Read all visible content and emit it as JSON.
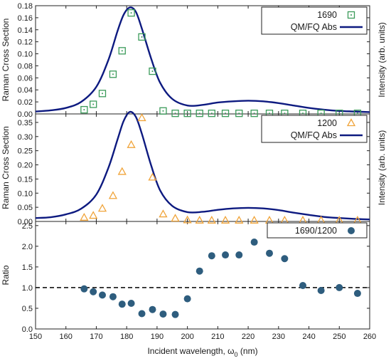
{
  "chart_data": [
    {
      "type": "scatter",
      "panel": "top",
      "ylabel": "Raman Cross Section",
      "ylabel_right": "Intensity (arb. units)",
      "xlim": [
        150,
        260
      ],
      "ylim": [
        0,
        0.18
      ],
      "yticks": [
        "0.00",
        "0.02",
        "0.04",
        "0.06",
        "0.08",
        "0.10",
        "0.12",
        "0.14",
        "0.16",
        "0.18"
      ],
      "legend_position": "top-right",
      "colors": {
        "marker": "#3b9b5a",
        "curve": "#0d1a80"
      },
      "series": [
        {
          "name": "1690",
          "marker": "square",
          "x": [
            166,
            169,
            172,
            175.5,
            178.5,
            181.5,
            185,
            188.5,
            192,
            196,
            200,
            204,
            208,
            212.5,
            217,
            222,
            227,
            232,
            238,
            244,
            250,
            256
          ],
          "y": [
            0.007,
            0.016,
            0.034,
            0.066,
            0.105,
            0.168,
            0.128,
            0.071,
            0.005,
            0.001,
            0.001,
            0.001,
            0.001,
            0.001,
            0.001,
            0.001,
            0.001,
            0.001,
            0.001,
            0.001,
            0.001,
            0.001
          ]
        },
        {
          "name": "QM/FQ Abs",
          "marker": "line",
          "x": [
            150,
            155,
            160,
            165,
            170,
            174,
            177,
            179,
            181,
            183,
            185,
            188,
            191,
            195,
            200,
            205,
            210,
            215,
            220,
            225,
            230,
            235,
            240,
            245,
            250,
            255,
            260
          ],
          "y": [
            0.004,
            0.006,
            0.01,
            0.02,
            0.045,
            0.09,
            0.138,
            0.165,
            0.177,
            0.17,
            0.142,
            0.093,
            0.052,
            0.025,
            0.014,
            0.015,
            0.019,
            0.021,
            0.022,
            0.021,
            0.018,
            0.014,
            0.01,
            0.007,
            0.005,
            0.004,
            0.003
          ]
        }
      ]
    },
    {
      "type": "scatter",
      "panel": "middle",
      "ylabel": "Raman Cross Section",
      "ylabel_right": "Intensity (arb. units)",
      "xlim": [
        150,
        260
      ],
      "ylim": [
        0,
        0.38
      ],
      "yticks": [
        "0.00",
        "0.05",
        "0.10",
        "0.15",
        "0.20",
        "0.25",
        "0.30",
        "0.35"
      ],
      "legend_position": "top-right",
      "colors": {
        "marker": "#f0a43a",
        "curve": "#0d1a80"
      },
      "series": [
        {
          "name": "1200",
          "marker": "triangle",
          "x": [
            166,
            169,
            172,
            175.5,
            178.5,
            181.5,
            185,
            188.5,
            192,
            196,
            200,
            204,
            208,
            212.5,
            217,
            222,
            227,
            232,
            238,
            244,
            250,
            256
          ],
          "y": [
            0.013,
            0.02,
            0.045,
            0.09,
            0.175,
            0.27,
            0.365,
            0.155,
            0.025,
            0.01,
            0.004,
            0.003,
            0.003,
            0.003,
            0.003,
            0.003,
            0.003,
            0.003,
            0.003,
            0.003,
            0.003,
            0.003
          ]
        },
        {
          "name": "QM/FQ Abs",
          "marker": "line",
          "x": [
            150,
            155,
            160,
            165,
            170,
            174,
            177,
            179,
            181,
            183,
            185,
            188,
            191,
            195,
            200,
            205,
            210,
            215,
            220,
            225,
            230,
            235,
            240,
            245,
            250,
            255,
            260
          ],
          "y": [
            0.012,
            0.015,
            0.025,
            0.045,
            0.095,
            0.19,
            0.29,
            0.355,
            0.387,
            0.37,
            0.31,
            0.2,
            0.11,
            0.055,
            0.033,
            0.034,
            0.041,
            0.046,
            0.048,
            0.046,
            0.04,
            0.031,
            0.023,
            0.016,
            0.012,
            0.009,
            0.007
          ]
        }
      ]
    },
    {
      "type": "scatter",
      "panel": "bottom",
      "ylabel": "Ratio",
      "xlabel": "Incident wavelength, ω0 (nm)",
      "xlim": [
        150,
        260
      ],
      "ylim": [
        0,
        2.6
      ],
      "xticks": [
        "150",
        "160",
        "170",
        "180",
        "190",
        "200",
        "210",
        "220",
        "230",
        "240",
        "250",
        "260"
      ],
      "yticks": [
        "0.0",
        "0.5",
        "1.0",
        "1.5",
        "2.0",
        "2.5"
      ],
      "reference_line": 1.0,
      "legend_position": "top-right",
      "colors": {
        "marker": "#2e5d7e",
        "reference": "#000000"
      },
      "series": [
        {
          "name": "1690/1200",
          "marker": "circle",
          "x": [
            166,
            169,
            172,
            175.5,
            178.5,
            181.5,
            185,
            188.5,
            192,
            196,
            200,
            204,
            208,
            212.5,
            217,
            222,
            227,
            232,
            238,
            244,
            250,
            256
          ],
          "y": [
            0.97,
            0.9,
            0.82,
            0.78,
            0.6,
            0.62,
            0.37,
            0.47,
            0.36,
            0.35,
            0.73,
            1.4,
            1.77,
            1.79,
            1.79,
            2.1,
            1.83,
            1.7,
            1.05,
            0.93,
            1.0,
            0.86
          ]
        }
      ]
    }
  ],
  "labels": {
    "xlabel_main": "Incident wavelength, ω",
    "xlabel_sub": "0",
    "xlabel_unit": " (nm)"
  }
}
